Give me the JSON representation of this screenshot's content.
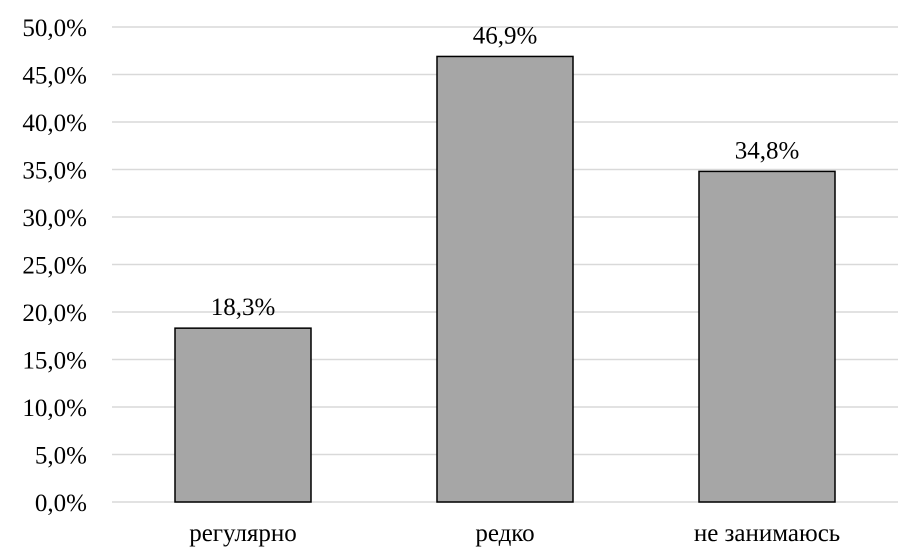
{
  "chart_data": {
    "type": "bar",
    "categories": [
      "регулярно",
      "редко",
      "не занимаюсь"
    ],
    "values": [
      18.3,
      46.9,
      34.8
    ],
    "data_labels": [
      "18,3%",
      "46,9%",
      "34,8%"
    ],
    "ylim": [
      0,
      50
    ],
    "ytick_values": [
      0,
      5,
      10,
      15,
      20,
      25,
      30,
      35,
      40,
      45,
      50
    ],
    "ytick_labels": [
      "0,0%",
      "5,0%",
      "10,0%",
      "15,0%",
      "20,0%",
      "25,0%",
      "30,0%",
      "35,0%",
      "40,0%",
      "45,0%",
      "50,0%"
    ],
    "grid": true,
    "legend": "none",
    "bar_color": "#a6a6a6",
    "bar_edge_color": "#000000",
    "grid_color": "#d9d9d9",
    "title": "",
    "xlabel": "",
    "ylabel": ""
  }
}
